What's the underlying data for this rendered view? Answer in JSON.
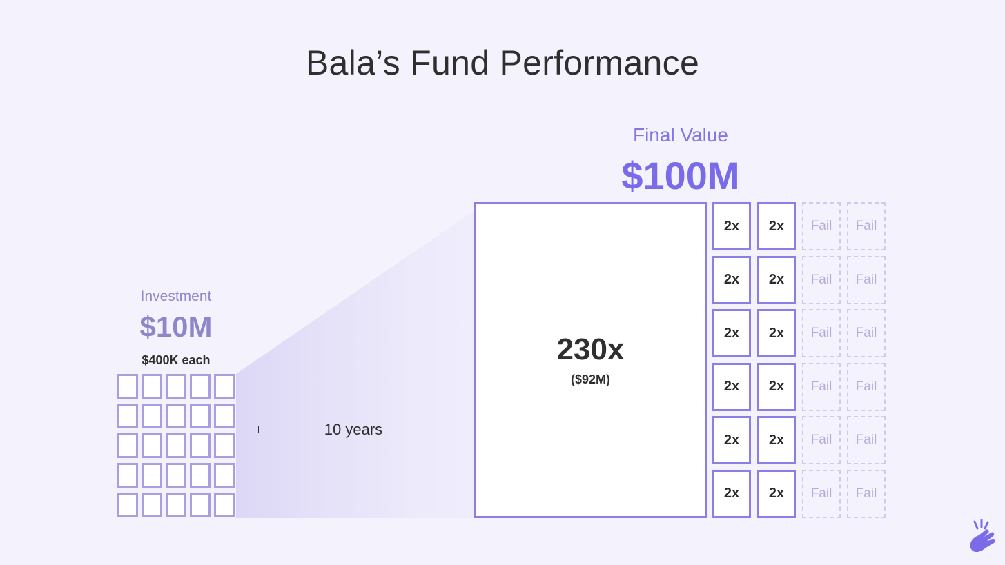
{
  "title": "Bala’s Fund Performance",
  "investment": {
    "label": "Investment",
    "amount": "$10M",
    "per_company": "$400K each",
    "company_count": 25
  },
  "duration": {
    "label": "10 years"
  },
  "final": {
    "label": "Final Value",
    "amount": "$100M",
    "top_outcome": {
      "multiple": "230x",
      "value": "($92M)"
    },
    "outcomes": [
      [
        "2x",
        "2x",
        "Fail",
        "Fail"
      ],
      [
        "2x",
        "2x",
        "Fail",
        "Fail"
      ],
      [
        "2x",
        "2x",
        "Fail",
        "Fail"
      ],
      [
        "2x",
        "2x",
        "Fail",
        "Fail"
      ],
      [
        "2x",
        "2x",
        "Fail",
        "Fail"
      ],
      [
        "2x",
        "2x",
        "Fail",
        "Fail"
      ]
    ]
  },
  "colors": {
    "accent": "#7a6ce9",
    "muted_accent": "#8e86c8",
    "fail": "#b2acdc",
    "background": "#f4f3fd"
  },
  "icons": {
    "brand_logo": "snapping-hand-icon"
  }
}
